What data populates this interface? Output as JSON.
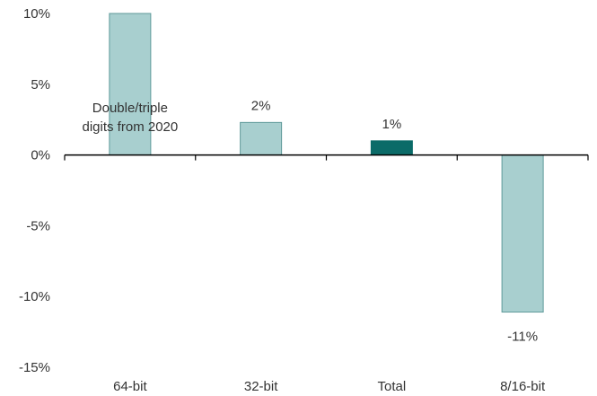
{
  "chart_data": {
    "type": "bar",
    "categories": [
      "64-bit",
      "32-bit",
      "Total",
      "8/16-bit"
    ],
    "values": [
      10,
      2.3,
      1.0,
      -11.1
    ],
    "data_labels": [
      "",
      "2%",
      "1%",
      "-11%"
    ],
    "annotation": "Double/triple digits from 2020",
    "annotation_lines": [
      "Double/triple",
      "digits from 2020"
    ],
    "y_ticks": [
      10,
      5,
      0,
      -5,
      -10,
      -15
    ],
    "y_tick_labels": [
      "10%",
      "5%",
      "0%",
      "-5%",
      "-10%",
      "-15%"
    ],
    "ylim": [
      -15,
      10
    ],
    "grid": false,
    "title": "",
    "xlabel": "",
    "ylabel": "",
    "colors": {
      "bar": "#a8cfcf",
      "bar_border": "#5f9a9a",
      "total_bar": "#0b6b68",
      "axis": "#000000",
      "text": "#333333"
    }
  }
}
